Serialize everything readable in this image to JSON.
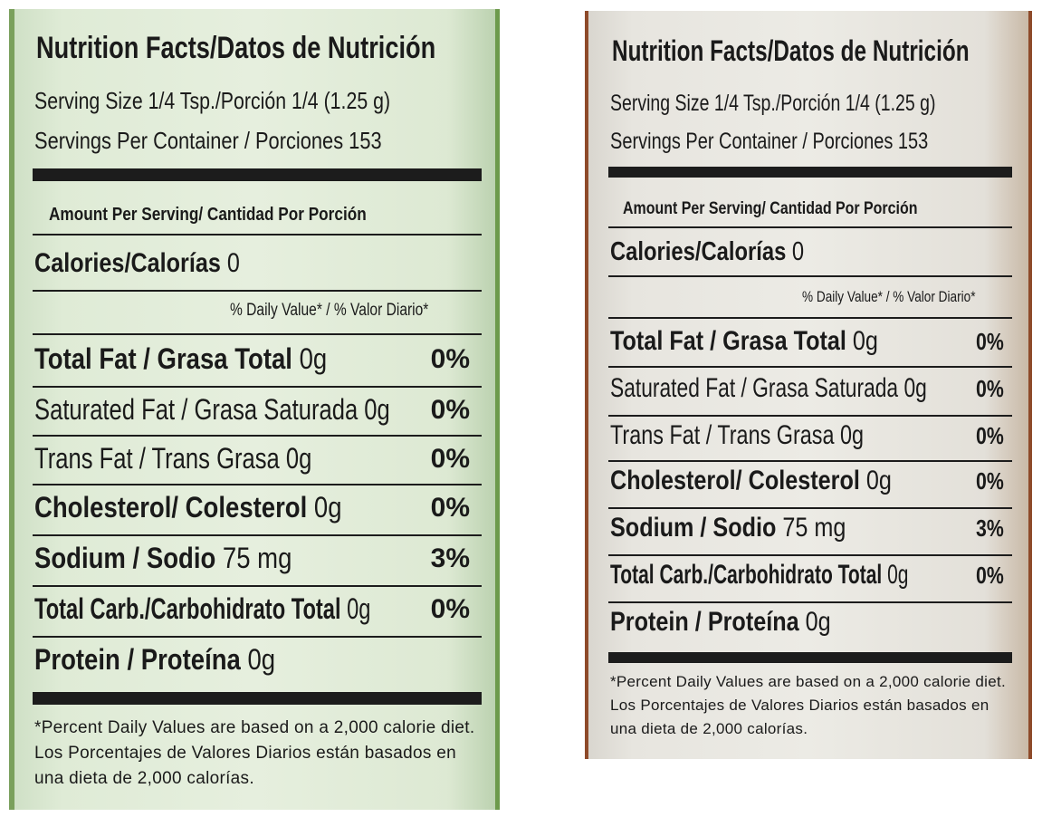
{
  "labels": [
    {
      "title": "Nutrition Facts/Datos de Nutrición",
      "serving_size": "Serving Size 1/4 Tsp./Porción 1/4 (1.25 g)",
      "servings_per_container": "Servings Per Container / Porciones 153",
      "amount_per_serving": "Amount Per Serving/ Cantidad Por Porción",
      "calories_label": "Calories/Calorías",
      "calories_value": "0",
      "daily_value_header": "% Daily Value* / % Valor Diario*",
      "rows": [
        {
          "name": "Total Fat / Grasa Total",
          "amount": "0g",
          "dv": "0%"
        },
        {
          "name": "Saturated Fat / Grasa Saturada",
          "amount": "0g",
          "dv": "0%"
        },
        {
          "name": "Trans Fat / Trans Grasa",
          "amount": "0g",
          "dv": "0%"
        },
        {
          "name": "Cholesterol/ Colesterol",
          "amount": "0g",
          "dv": "0%"
        },
        {
          "name": "Sodium / Sodio",
          "amount": "75 mg",
          "dv": "3%"
        },
        {
          "name": "Total Carb./Carbohidrato Total",
          "amount": "0g",
          "dv": "0%"
        },
        {
          "name": "Protein / Proteína",
          "amount": "0g",
          "dv": ""
        }
      ],
      "footnote": "*Percent Daily Values are based on a 2,000 calorie diet. Los Porcentajes de Valores Diarios están basados en una dieta de 2,000 calorías.",
      "colors": {
        "background": "#e3eddb",
        "edge": "#7aa05c"
      }
    },
    {
      "title": "Nutrition Facts/Datos de Nutrición",
      "serving_size": "Serving Size 1/4 Tsp./Porción 1/4 (1.25 g)",
      "servings_per_container": "Servings Per Container / Porciones 153",
      "amount_per_serving": "Amount Per Serving/ Cantidad Por Porción",
      "calories_label": "Calories/Calorías",
      "calories_value": "0",
      "daily_value_header": "% Daily Value* / % Valor Diario*",
      "rows": [
        {
          "name": "Total Fat / Grasa Total",
          "amount": "0g",
          "dv": "0%"
        },
        {
          "name": "Saturated Fat / Grasa Saturada",
          "amount": "0g",
          "dv": "0%"
        },
        {
          "name": "Trans Fat / Trans Grasa",
          "amount": "0g",
          "dv": "0%"
        },
        {
          "name": "Cholesterol/ Colesterol",
          "amount": "0g",
          "dv": "0%"
        },
        {
          "name": "Sodium / Sodio",
          "amount": "75 mg",
          "dv": "3%"
        },
        {
          "name": "Total Carb./Carbohidrato Total",
          "amount": "0g",
          "dv": "0%"
        },
        {
          "name": "Protein / Proteína",
          "amount": "0g",
          "dv": ""
        }
      ],
      "footnote": "*Percent Daily Values are based on a 2,000 calorie diet. Los Porcentajes de Valores Diarios están basados en una dieta de 2,000 calorías.",
      "colors": {
        "background": "#eae8e2",
        "edge": "#8e4a2a"
      }
    }
  ]
}
